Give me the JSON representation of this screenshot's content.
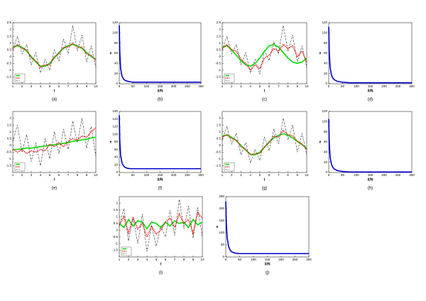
{
  "chart_data": [
    {
      "type": "line",
      "caption": "(a)",
      "x_label": "t",
      "xlim": [
        1,
        10
      ],
      "xticks": [
        1,
        2,
        3,
        4,
        5,
        6,
        7,
        8,
        9,
        10
      ],
      "ylim": [
        -2,
        2.5
      ],
      "yticks": [
        -1.5,
        -1,
        -0.5,
        0,
        0.5,
        1,
        1.5,
        2,
        2.5
      ],
      "x": [
        1,
        1.5,
        2,
        2.5,
        3,
        3.5,
        4,
        4.5,
        5,
        5.5,
        6,
        6.5,
        7,
        7.5,
        8,
        8.5,
        9,
        9.5,
        10
      ],
      "series": [
        {
          "color": "#000000",
          "style": "dashdot",
          "values": [
            0.5,
            1.5,
            0.2,
            0.9,
            -0.6,
            0.3,
            -1.2,
            -0.2,
            -1.0,
            0.5,
            -0.3,
            1.3,
            0.2,
            2.3,
            0.4,
            1.6,
            -0.4,
            0.8,
            -0.8
          ]
        },
        {
          "color": "#00dd00",
          "style": "solid",
          "values": [
            0.7,
            0.8,
            0.7,
            0.4,
            0.0,
            -0.4,
            -0.7,
            -0.7,
            -0.5,
            -0.1,
            0.3,
            0.6,
            0.8,
            0.9,
            0.8,
            0.6,
            0.3,
            0.0,
            -0.2
          ]
        },
        {
          "color": "#ee0000",
          "style": "dotted",
          "values": [
            0.6,
            0.9,
            0.6,
            0.5,
            -0.1,
            -0.3,
            -0.8,
            -0.6,
            -0.6,
            0.0,
            0.2,
            0.7,
            0.7,
            1.0,
            0.7,
            0.7,
            0.2,
            0.1,
            -0.3
          ]
        }
      ]
    },
    {
      "type": "line",
      "caption": "(b)",
      "x_label": "it/N",
      "y_label": "e",
      "xlim": [
        0,
        300
      ],
      "xticks": [
        0,
        50,
        100,
        150,
        200,
        250,
        300
      ],
      "ylim": [
        0,
        120
      ],
      "yticks": [
        0,
        20,
        40,
        60,
        80,
        100,
        120
      ],
      "x": [
        0,
        2,
        5,
        10,
        15,
        20,
        30,
        40,
        50,
        75,
        100,
        150,
        200,
        250,
        300
      ],
      "series": [
        {
          "color": "#0000cc",
          "style": "solid",
          "values": [
            115,
            60,
            30,
            15,
            10,
            7,
            5,
            4,
            3,
            3,
            3,
            3,
            3,
            3,
            3
          ]
        }
      ]
    },
    {
      "type": "line",
      "caption": "(c)",
      "x_label": "t",
      "xlim": [
        1,
        10
      ],
      "xticks": [
        1,
        2,
        3,
        4,
        5,
        6,
        7,
        8,
        9,
        10
      ],
      "ylim": [
        -2,
        2.5
      ],
      "yticks": [
        -1.5,
        -1,
        -0.5,
        0,
        0.5,
        1,
        1.5,
        2,
        2.5
      ],
      "x": [
        1,
        1.5,
        2,
        2.5,
        3,
        3.5,
        4,
        4.5,
        5,
        5.5,
        6,
        6.5,
        7,
        7.5,
        8,
        8.5,
        9,
        9.5,
        10
      ],
      "series": [
        {
          "color": "#000000",
          "style": "dashdot",
          "values": [
            0.5,
            1.5,
            0.2,
            0.9,
            -0.6,
            0.3,
            -1.2,
            -0.2,
            -1.3,
            0.5,
            -0.3,
            1.1,
            0.2,
            2.3,
            0.4,
            1.6,
            -0.4,
            0.8,
            -0.8
          ]
        },
        {
          "color": "#00dd00",
          "style": "solid",
          "values": [
            0.7,
            0.8,
            0.5,
            0.1,
            -0.3,
            -0.6,
            -0.7,
            -0.5,
            -0.1,
            0.4,
            0.8,
            0.9,
            0.7,
            0.3,
            -0.1,
            -0.4,
            -0.5,
            -0.4,
            -0.1
          ]
        },
        {
          "color": "#ee0000",
          "style": "dotted",
          "values": [
            0.6,
            0.9,
            0.5,
            0.4,
            -0.2,
            -0.5,
            -1.0,
            -0.6,
            -0.9,
            -0.1,
            0.1,
            0.6,
            0.4,
            0.9,
            0.6,
            0.8,
            0.0,
            0.4,
            -0.4
          ]
        }
      ]
    },
    {
      "type": "line",
      "caption": "(d)",
      "x_label": "it/N",
      "y_label": "e",
      "xlim": [
        0,
        300
      ],
      "xticks": [
        0,
        50,
        100,
        150,
        200,
        250,
        300
      ],
      "ylim": [
        0,
        120
      ],
      "yticks": [
        0,
        20,
        40,
        60,
        80,
        100,
        120
      ],
      "x": [
        0,
        2,
        5,
        10,
        15,
        20,
        30,
        40,
        50,
        75,
        100,
        150,
        200,
        250,
        300
      ],
      "series": [
        {
          "color": "#0000cc",
          "style": "solid",
          "values": [
            112,
            62,
            32,
            17,
            11,
            8,
            5,
            4,
            3,
            2,
            2,
            2,
            2,
            2,
            2
          ]
        }
      ]
    },
    {
      "type": "line",
      "caption": "(e)",
      "x_label": "t",
      "xlim": [
        1,
        10
      ],
      "xticks": [
        1,
        2,
        3,
        4,
        5,
        6,
        7,
        8,
        9,
        10
      ],
      "ylim": [
        -2,
        2.5
      ],
      "yticks": [
        -1.5,
        -1,
        -0.5,
        0,
        0.5,
        1,
        1.5,
        2
      ],
      "x": [
        1,
        1.5,
        2,
        2.5,
        3,
        3.5,
        4,
        4.5,
        5,
        5.5,
        6,
        6.5,
        7,
        7.5,
        8,
        8.5,
        9,
        9.5,
        10
      ],
      "series": [
        {
          "color": "#000000",
          "style": "dashdot",
          "values": [
            0.3,
            1.5,
            -0.5,
            0.8,
            -1.2,
            0.2,
            -1.5,
            0.5,
            -1.0,
            1.0,
            -0.6,
            1.2,
            -0.3,
            1.8,
            0.2,
            2.0,
            -0.2,
            1.4,
            -0.8
          ]
        },
        {
          "color": "#00dd00",
          "style": "solid",
          "values": [
            -0.3,
            -0.3,
            -0.25,
            -0.2,
            -0.2,
            -0.15,
            -0.1,
            -0.05,
            0.0,
            0.05,
            0.1,
            0.15,
            0.2,
            0.3,
            0.35,
            0.4,
            0.45,
            0.55,
            0.6
          ]
        },
        {
          "color": "#ee0000",
          "style": "dotted",
          "values": [
            -0.3,
            -0.5,
            -0.3,
            -0.6,
            -0.4,
            -0.5,
            -0.3,
            -0.4,
            0.1,
            -0.1,
            0.2,
            -0.1,
            0.3,
            0.5,
            0.4,
            0.7,
            0.6,
            1.0,
            1.3
          ]
        }
      ]
    },
    {
      "type": "line",
      "caption": "(f)",
      "x_label": "it/N",
      "y_label": "e",
      "xlim": [
        0,
        300
      ],
      "xticks": [
        0,
        50,
        100,
        150,
        200,
        250,
        300
      ],
      "ylim": [
        0,
        160
      ],
      "yticks": [
        0,
        20,
        40,
        60,
        80,
        100,
        120,
        140,
        160
      ],
      "x": [
        0,
        2,
        5,
        10,
        15,
        20,
        30,
        40,
        50,
        75,
        100,
        150,
        200,
        250,
        300
      ],
      "series": [
        {
          "color": "#0000cc",
          "style": "solid",
          "values": [
            150,
            80,
            45,
            25,
            18,
            14,
            11,
            10,
            10,
            10,
            10,
            10,
            10,
            10,
            10
          ]
        }
      ]
    },
    {
      "type": "line",
      "caption": "(g)",
      "x_label": "t",
      "xlim": [
        1,
        10
      ],
      "xticks": [
        1,
        2,
        3,
        4,
        5,
        6,
        7,
        8,
        9,
        10
      ],
      "ylim": [
        -2,
        2.5
      ],
      "yticks": [
        -1.5,
        -1,
        -0.5,
        0,
        0.5,
        1,
        1.5,
        2
      ],
      "x": [
        1,
        1.5,
        2,
        2.5,
        3,
        3.5,
        4,
        4.5,
        5,
        5.5,
        6,
        6.5,
        7,
        7.5,
        8,
        8.5,
        9,
        9.5,
        10
      ],
      "series": [
        {
          "color": "#000000",
          "style": "dashdot",
          "values": [
            0.4,
            1.4,
            0.1,
            0.9,
            -0.7,
            0.2,
            -1.3,
            -0.3,
            -1.1,
            0.6,
            -0.4,
            1.2,
            0.1,
            2.0,
            0.4,
            1.5,
            -0.5,
            0.9,
            -0.7
          ]
        },
        {
          "color": "#00dd00",
          "style": "solid",
          "values": [
            0.7,
            0.75,
            0.6,
            0.35,
            0.0,
            -0.35,
            -0.65,
            -0.7,
            -0.5,
            -0.15,
            0.25,
            0.55,
            0.75,
            0.85,
            0.75,
            0.55,
            0.3,
            0.05,
            -0.2
          ]
        },
        {
          "color": "#ee0000",
          "style": "dotted",
          "values": [
            0.6,
            0.8,
            0.5,
            0.4,
            -0.1,
            -0.3,
            -0.7,
            -0.6,
            -0.6,
            -0.1,
            0.2,
            0.7,
            0.6,
            1.1,
            0.8,
            0.7,
            0.3,
            0.1,
            -0.3
          ]
        }
      ]
    },
    {
      "type": "line",
      "caption": "(h)",
      "x_label": "it/N",
      "y_label": "e",
      "xlim": [
        0,
        300
      ],
      "xticks": [
        0,
        50,
        100,
        150,
        200,
        250,
        300
      ],
      "ylim": [
        0,
        120
      ],
      "yticks": [
        0,
        20,
        40,
        60,
        80,
        100,
        120
      ],
      "x": [
        0,
        2,
        5,
        10,
        15,
        20,
        30,
        40,
        50,
        75,
        100,
        150,
        200,
        250,
        300
      ],
      "series": [
        {
          "color": "#0000cc",
          "style": "solid",
          "values": [
            105,
            58,
            30,
            16,
            10,
            7,
            4,
            3,
            2,
            1,
            1,
            1,
            1,
            1,
            1
          ]
        }
      ]
    },
    {
      "type": "line",
      "caption": "(i)",
      "x_label": "t",
      "xlim": [
        1,
        10
      ],
      "xticks": [
        1,
        2,
        3,
        4,
        5,
        6,
        7,
        8,
        9,
        10
      ],
      "ylim": [
        -2,
        2.5
      ],
      "yticks": [
        -1.5,
        -1,
        -0.5,
        0,
        0.5,
        1,
        1.5,
        2
      ],
      "x": [
        1,
        1.5,
        2,
        2.5,
        3,
        3.5,
        4,
        4.5,
        5,
        5.5,
        6,
        6.5,
        7,
        7.5,
        8,
        8.5,
        9,
        9.5,
        10
      ],
      "series": [
        {
          "color": "#000000",
          "style": "dashdot",
          "values": [
            0.3,
            1.6,
            -0.8,
            1.0,
            -1.0,
            1.2,
            -1.6,
            0.4,
            -1.2,
            0.3,
            -0.5,
            1.5,
            -0.4,
            2.3,
            0.1,
            1.8,
            -0.6,
            1.7,
            -0.5
          ]
        },
        {
          "color": "#00dd00",
          "style": "solid",
          "values": [
            0.5,
            0.2,
            0.8,
            0.3,
            0.7,
            0.6,
            0.1,
            0.6,
            0.5,
            0.2,
            0.6,
            0.3,
            0.7,
            0.5,
            0.6,
            0.2,
            0.8,
            0.4,
            0.6
          ]
        },
        {
          "color": "#ee0000",
          "style": "dotted",
          "values": [
            0.4,
            1.0,
            -0.2,
            0.9,
            0.1,
            0.5,
            -0.5,
            0.3,
            -0.3,
            0.0,
            0.6,
            0.9,
            0.2,
            1.2,
            0.5,
            0.8,
            -0.2,
            1.3,
            0.9
          ]
        }
      ]
    },
    {
      "type": "line",
      "caption": "(j)",
      "x_label": "it/N",
      "y_label": "e",
      "xlim": [
        0,
        300
      ],
      "xticks": [
        0,
        50,
        100,
        150,
        200,
        250,
        300
      ],
      "ylim": [
        0,
        250
      ],
      "yticks": [
        0,
        50,
        100,
        150,
        200,
        250
      ],
      "x": [
        0,
        2,
        5,
        10,
        15,
        20,
        30,
        40,
        50,
        75,
        100,
        150,
        200,
        250,
        300
      ],
      "series": [
        {
          "color": "#0000cc",
          "style": "solid",
          "values": [
            230,
            140,
            80,
            45,
            30,
            22,
            17,
            15,
            14,
            14,
            14,
            14,
            14,
            14,
            14
          ]
        }
      ]
    }
  ]
}
